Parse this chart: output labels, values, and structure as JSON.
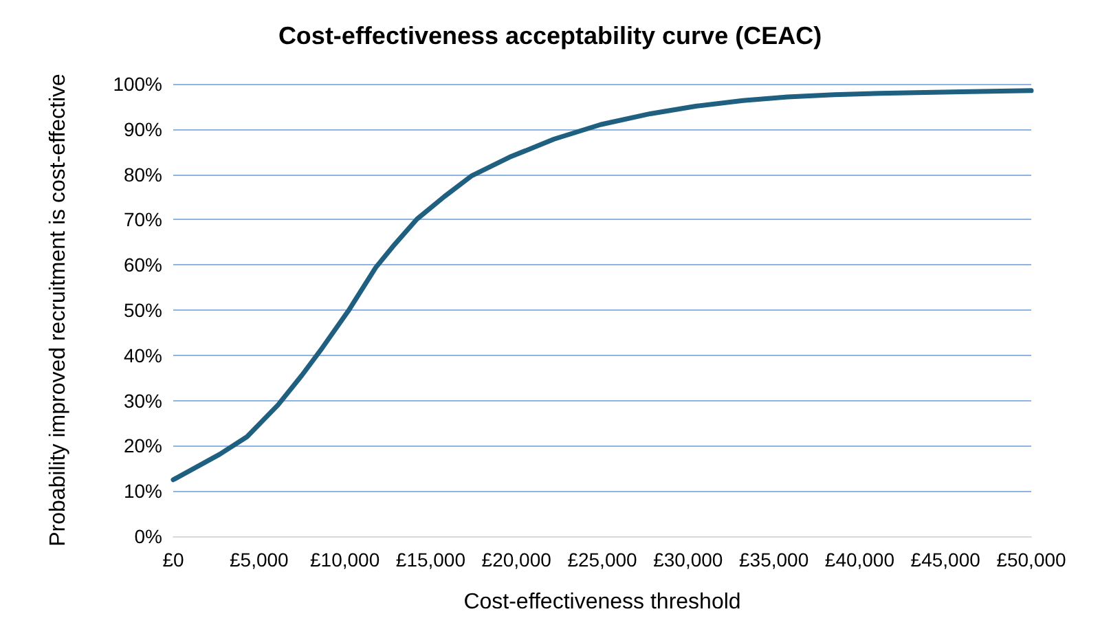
{
  "chart_data": {
    "type": "line",
    "title": "Cost-effectiveness acceptability curve (CEAC)",
    "xlabel": "Cost-effectiveness threshold",
    "ylabel": "Probability improved recruitment is cost-effective",
    "x": [
      0,
      2700,
      4300,
      6100,
      7500,
      8600,
      10200,
      11800,
      12900,
      14200,
      15800,
      17400,
      19600,
      22200,
      24900,
      27800,
      30500,
      33200,
      35800,
      38500,
      41200,
      43800,
      46500,
      50000
    ],
    "series": [
      {
        "color": "#1f5f80",
        "values": [
          12.5,
          18.1,
          22,
          29,
          35.6,
          41.2,
          49.8,
          59.4,
          64.5,
          70.1,
          75.1,
          79.7,
          83.8,
          87.8,
          91,
          93.4,
          95.1,
          96.3,
          97.1,
          97.6,
          97.9,
          98.1,
          98.3,
          98.5
        ]
      }
    ],
    "xlim": [
      0,
      50000
    ],
    "xticks": [
      {
        "value": 0,
        "label": "£0"
      },
      {
        "value": 5000,
        "label": "£5,000"
      },
      {
        "value": 10000,
        "label": "£10,000"
      },
      {
        "value": 15000,
        "label": "£15,000"
      },
      {
        "value": 20000,
        "label": "£20,000"
      },
      {
        "value": 25000,
        "label": "£25,000"
      },
      {
        "value": 30000,
        "label": "£30,000"
      },
      {
        "value": 35000,
        "label": "£35,000"
      },
      {
        "value": 40000,
        "label": "£40,000"
      },
      {
        "value": 45000,
        "label": "£45,000"
      },
      {
        "value": 50000,
        "label": "£50,000"
      }
    ],
    "ylim": [
      0,
      100
    ],
    "yticks": [
      {
        "value": 0,
        "label": "0%"
      },
      {
        "value": 10,
        "label": "10%"
      },
      {
        "value": 20,
        "label": "20%"
      },
      {
        "value": 30,
        "label": "30%"
      },
      {
        "value": 40,
        "label": "40%"
      },
      {
        "value": 50,
        "label": "50%"
      },
      {
        "value": 60,
        "label": "60%"
      },
      {
        "value": 70,
        "label": "70%"
      },
      {
        "value": 80,
        "label": "80%"
      },
      {
        "value": 90,
        "label": "90%"
      },
      {
        "value": 100,
        "label": "100%"
      }
    ],
    "grid": "y",
    "marker": "none",
    "line_style": "solid"
  }
}
